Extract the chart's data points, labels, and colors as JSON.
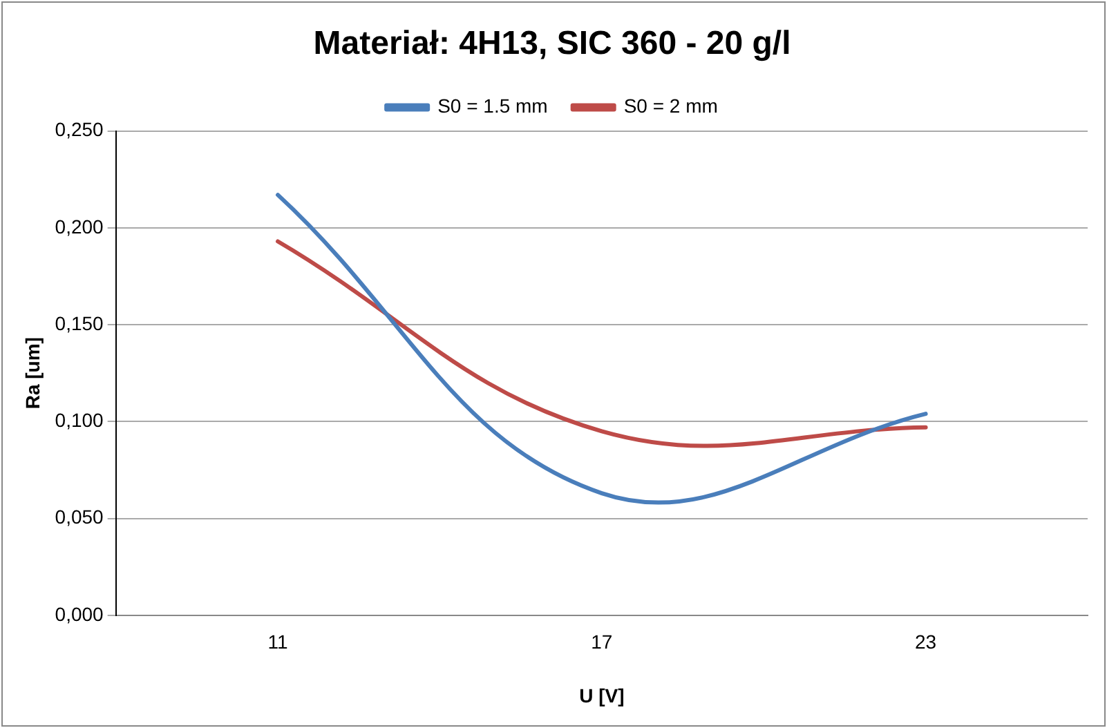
{
  "chart_data": {
    "type": "line",
    "title": "Materiał: 4H13, SIC 360 - 20 g/l",
    "xlabel": "U [V]",
    "ylabel": "Ra [um]",
    "categories": [
      "11",
      "17",
      "23"
    ],
    "series": [
      {
        "name": "S0 = 1.5 mm",
        "color": "#4a7ebb",
        "values": [
          0.217,
          0.063,
          0.104
        ]
      },
      {
        "name": "S0 = 2 mm",
        "color": "#be4b48",
        "values": [
          0.193,
          0.095,
          0.097
        ]
      }
    ],
    "ylim": [
      0,
      0.25
    ],
    "yticks": [
      {
        "value": 0,
        "label": "0,000"
      },
      {
        "value": 0.05,
        "label": "0,050"
      },
      {
        "value": 0.1,
        "label": "0,100"
      },
      {
        "value": 0.15,
        "label": "0,150"
      },
      {
        "value": 0.2,
        "label": "0,200"
      },
      {
        "value": 0.25,
        "label": "0,250"
      }
    ],
    "grid": "y",
    "legend": "top",
    "marker": "none",
    "line_style": "solid"
  }
}
